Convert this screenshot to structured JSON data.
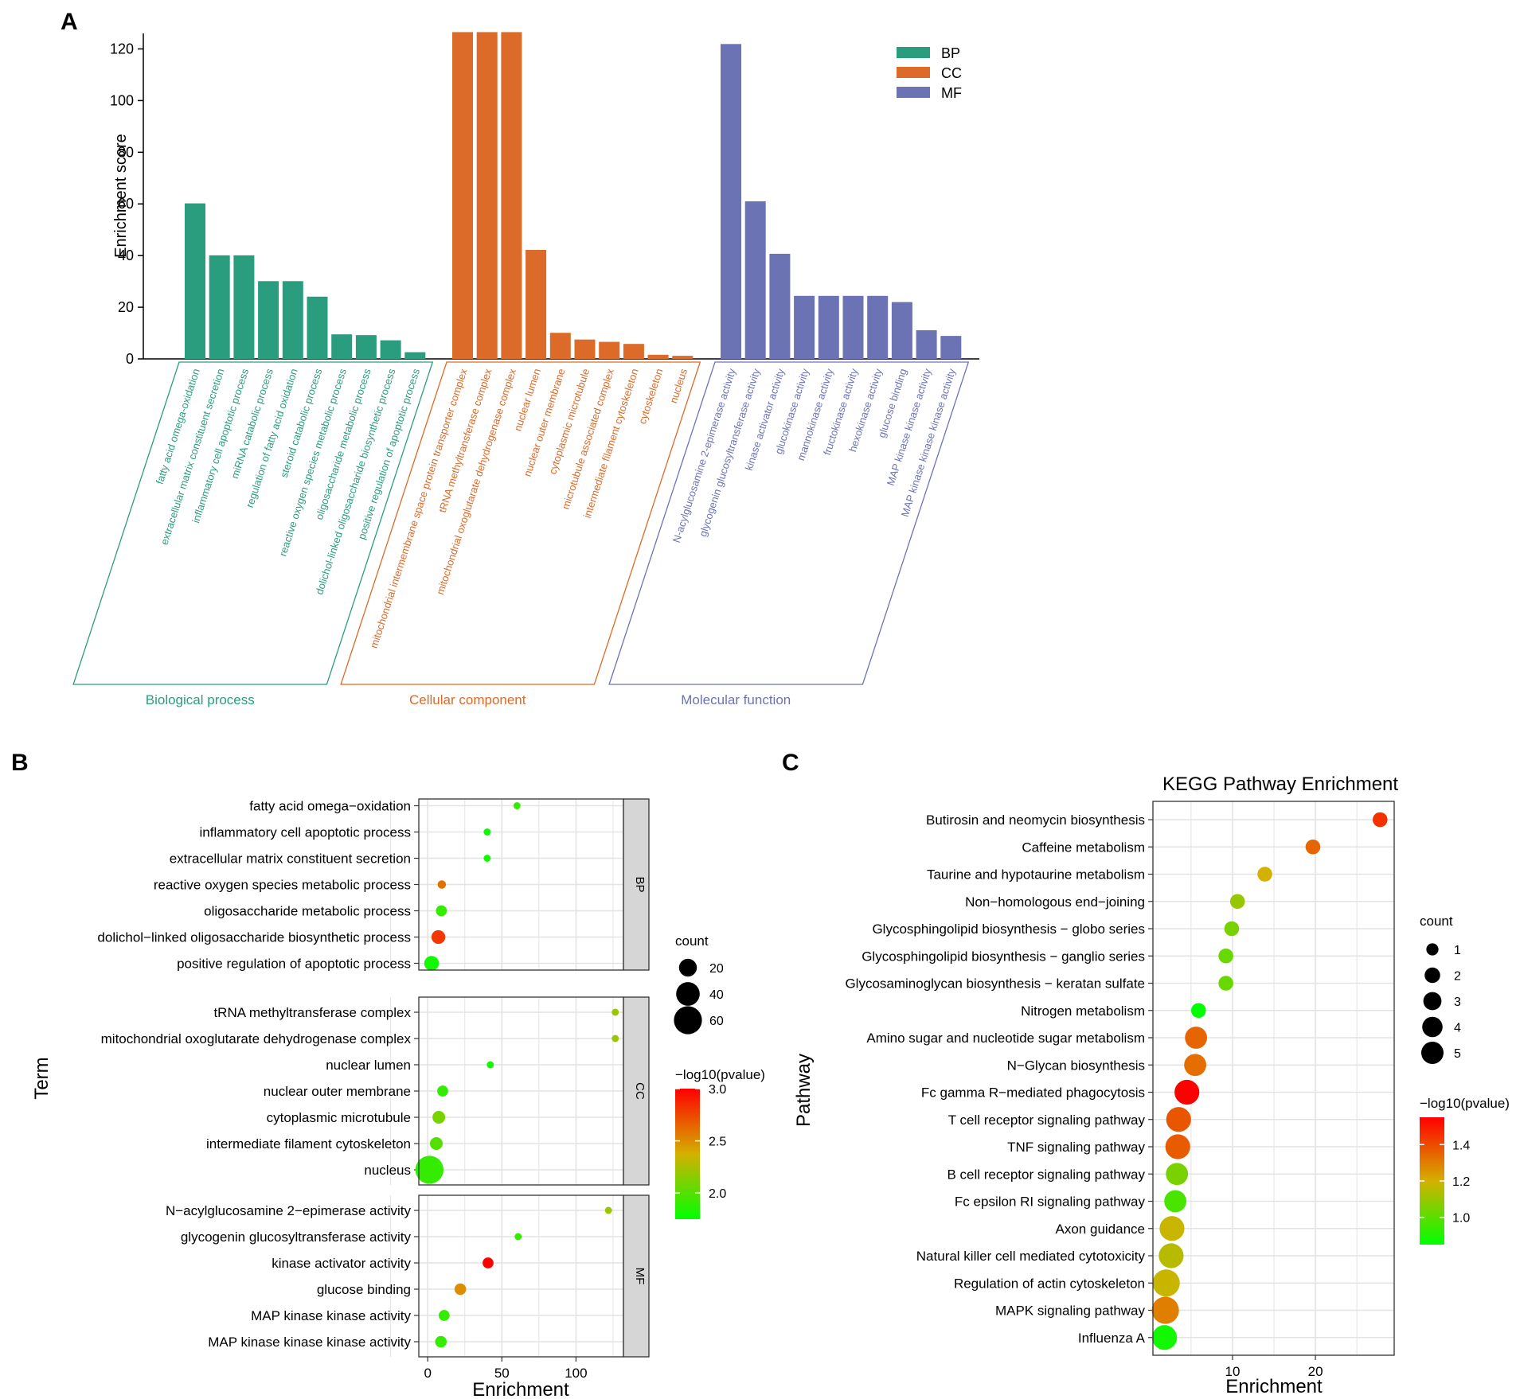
{
  "panel_letters": {
    "a": "A",
    "b": "B",
    "c": "C"
  },
  "colors": {
    "BP": "#2a9d7e",
    "CC": "#dc6a28",
    "MF": "#6c73b5",
    "grid": "#e3e3e3",
    "strip": "#d6d6d6",
    "low": "#00ff00",
    "mid": "#d4b000",
    "high": "#ff0000"
  },
  "chart_data": [
    {
      "id": "A",
      "type": "bar",
      "ylabel": "Enrichment score",
      "ylim": [
        0,
        126
      ],
      "yticks": [
        0,
        20,
        40,
        60,
        80,
        100,
        120
      ],
      "legend": [
        {
          "key": "BP",
          "label": "BP"
        },
        {
          "key": "CC",
          "label": "CC"
        },
        {
          "key": "MF",
          "label": "MF"
        }
      ],
      "groups": [
        {
          "key": "BP",
          "name": "Biological process",
          "categories": [
            "fatty acid omega-oxidation",
            "extracellular matrix constituent secretion",
            "inflammatory cell apoptotic process",
            "miRNA catabolic process",
            "regulation of fatty acid oxidation",
            "steroid catabolic process",
            "reactive oxygen species metabolic process",
            "oligosaccharide metabolic process",
            "dolichol-linked oligosaccharide biosynthetic process",
            "positive regulation of apoptotic process"
          ],
          "values": [
            60.2,
            40.1,
            40.1,
            30.1,
            30.1,
            24.1,
            9.5,
            9.2,
            7.2,
            2.6
          ]
        },
        {
          "key": "CC",
          "name": "Cellular component",
          "categories": [
            "mitochondrial intermembrane space protein transporter complex",
            "tRNA methyltransferase complex",
            "mitochondrial oxoglutarate dehydrogenase complex",
            "nuclear lumen",
            "nuclear outer membrane",
            "cytoplasmic microtubule",
            "microtubule associated complex",
            "intermediate filament cytoskeleton",
            "cytoskeleton",
            "nucleus"
          ],
          "values": [
            126.5,
            126.5,
            126.5,
            42.2,
            10.1,
            7.5,
            6.6,
            5.8,
            1.6,
            1.2
          ]
        },
        {
          "key": "MF",
          "name": "Molecular function",
          "categories": [
            "N-acylglucosamine 2-epimerase activity",
            "glycogenin glucosyltransferase activity",
            "kinase activator activity",
            "glucokinase activity",
            "mannokinase activity",
            "fructokinase activity",
            "hexokinase activity",
            "glucose binding",
            "MAP kinase kinase activity",
            "MAP kinase kinase kinase activity"
          ],
          "values": [
            121.9,
            61.0,
            40.7,
            24.4,
            24.4,
            24.4,
            24.4,
            22.0,
            11.1,
            8.9
          ]
        }
      ]
    },
    {
      "id": "B",
      "type": "scatter",
      "xlabel": "Enrichment",
      "ylabel": "Term",
      "xlim": [
        -6,
        132
      ],
      "xticks": [
        0,
        50,
        100
      ],
      "size_legend": {
        "title": "count",
        "values": [
          20,
          40,
          60
        ]
      },
      "color_legend": {
        "title": "−log10(pvalue)",
        "min": 1.75,
        "max": 3.0,
        "ticks": [
          2.0,
          2.5,
          3.0
        ],
        "tick_labels": [
          "2.0",
          "2.5",
          "3.0"
        ]
      },
      "facets": [
        {
          "label": "BP",
          "terms": [
            {
              "name": "fatty acid omega−oxidation",
              "x": 60.2,
              "count": 1,
              "logp": 1.9
            },
            {
              "name": "inflammatory cell apoptotic process",
              "x": 40.1,
              "count": 1,
              "logp": 1.8
            },
            {
              "name": "extracellular matrix constituent secretion",
              "x": 40.1,
              "count": 1,
              "logp": 1.8
            },
            {
              "name": "reactive oxygen species metabolic process",
              "x": 9.5,
              "count": 2,
              "logp": 2.6
            },
            {
              "name": "oligosaccharide metabolic process",
              "x": 9.2,
              "count": 5,
              "logp": 1.9
            },
            {
              "name": "dolichol−linked oligosaccharide biosynthetic process",
              "x": 7.2,
              "count": 10,
              "logp": 2.8
            },
            {
              "name": "positive regulation of apoptotic process",
              "x": 2.6,
              "count": 12,
              "logp": 1.8
            }
          ]
        },
        {
          "label": "CC",
          "terms": [
            {
              "name": "tRNA methyltransferase complex",
              "x": 126.5,
              "count": 1,
              "logp": 2.2
            },
            {
              "name": "mitochondrial oxoglutarate dehydrogenase complex",
              "x": 126.5,
              "count": 1,
              "logp": 2.2
            },
            {
              "name": "nuclear lumen",
              "x": 42.2,
              "count": 1,
              "logp": 1.8
            },
            {
              "name": "nuclear outer membrane",
              "x": 10.1,
              "count": 5,
              "logp": 1.9
            },
            {
              "name": "cytoplasmic microtubule",
              "x": 7.5,
              "count": 8,
              "logp": 2.1
            },
            {
              "name": "intermediate filament cytoskeleton",
              "x": 5.8,
              "count": 8,
              "logp": 2.0
            },
            {
              "name": "nucleus",
              "x": 1.2,
              "count": 60,
              "logp": 1.9
            }
          ]
        },
        {
          "label": "MF",
          "terms": [
            {
              "name": "N−acylglucosamine 2−epimerase activity",
              "x": 121.9,
              "count": 1,
              "logp": 2.2
            },
            {
              "name": "glycogenin glucosyltransferase activity",
              "x": 61.0,
              "count": 1,
              "logp": 1.9
            },
            {
              "name": "kinase activator activity",
              "x": 40.7,
              "count": 5,
              "logp": 3.0
            },
            {
              "name": "glucose binding",
              "x": 22.0,
              "count": 6,
              "logp": 2.5
            },
            {
              "name": "MAP kinase kinase activity",
              "x": 11.1,
              "count": 5,
              "logp": 1.9
            },
            {
              "name": "MAP kinase kinase kinase activity",
              "x": 8.9,
              "count": 6,
              "logp": 1.9
            }
          ]
        }
      ]
    },
    {
      "id": "C",
      "type": "scatter",
      "title": "KEGG Pathway Enrichment",
      "xlabel": "Enrichment",
      "ylabel": "Pathway",
      "xlim": [
        0.4,
        29.5
      ],
      "xticks": [
        10,
        20
      ],
      "size_legend": {
        "title": "count",
        "values": [
          1,
          2,
          3,
          4,
          5
        ]
      },
      "color_legend": {
        "title": "−log10(pvalue)",
        "min": 0.85,
        "max": 1.55,
        "ticks": [
          1.0,
          1.2,
          1.4
        ],
        "tick_labels": [
          "1.0",
          "1.2",
          "1.4"
        ]
      },
      "pathways": [
        {
          "name": "Butirosin and neomycin biosynthesis",
          "x": 27.8,
          "count": 1,
          "logp": 1.45
        },
        {
          "name": "Caffeine metabolism",
          "x": 19.7,
          "count": 1,
          "logp": 1.35
        },
        {
          "name": "Taurine and hypotaurine metabolism",
          "x": 13.9,
          "count": 1,
          "logp": 1.2
        },
        {
          "name": "Non−homologous end−joining",
          "x": 10.6,
          "count": 1,
          "logp": 1.1
        },
        {
          "name": "Glycosphingolipid biosynthesis − globo series",
          "x": 9.9,
          "count": 1,
          "logp": 1.05
        },
        {
          "name": "Glycosphingolipid biosynthesis − ganglio series",
          "x": 9.2,
          "count": 1,
          "logp": 1.02
        },
        {
          "name": "Glycosaminoglycan biosynthesis − keratan sulfate",
          "x": 9.2,
          "count": 1,
          "logp": 1.02
        },
        {
          "name": "Nitrogen metabolism",
          "x": 5.9,
          "count": 1,
          "logp": 0.85
        },
        {
          "name": "Amino sugar and nucleotide sugar metabolism",
          "x": 5.6,
          "count": 3,
          "logp": 1.35
        },
        {
          "name": "N−Glycan biosynthesis",
          "x": 5.5,
          "count": 3,
          "logp": 1.33
        },
        {
          "name": "Fc gamma R−mediated phagocytosis",
          "x": 4.5,
          "count": 4,
          "logp": 1.55
        },
        {
          "name": "T cell receptor signaling pathway",
          "x": 3.5,
          "count": 4,
          "logp": 1.38
        },
        {
          "name": "TNF signaling pathway",
          "x": 3.4,
          "count": 4,
          "logp": 1.37
        },
        {
          "name": "B cell receptor signaling pathway",
          "x": 3.3,
          "count": 3,
          "logp": 1.05
        },
        {
          "name": "Fc epsilon RI signaling pathway",
          "x": 3.1,
          "count": 3,
          "logp": 0.97
        },
        {
          "name": "Axon guidance",
          "x": 2.7,
          "count": 4,
          "logp": 1.18
        },
        {
          "name": "Natural killer cell mediated cytotoxicity",
          "x": 2.6,
          "count": 4,
          "logp": 1.15
        },
        {
          "name": "Regulation of actin cytoskeleton",
          "x": 2.0,
          "count": 5,
          "logp": 1.18
        },
        {
          "name": "MAPK signaling pathway",
          "x": 1.9,
          "count": 5,
          "logp": 1.3
        },
        {
          "name": "Influenza A",
          "x": 1.8,
          "count": 4,
          "logp": 0.88
        }
      ]
    }
  ]
}
